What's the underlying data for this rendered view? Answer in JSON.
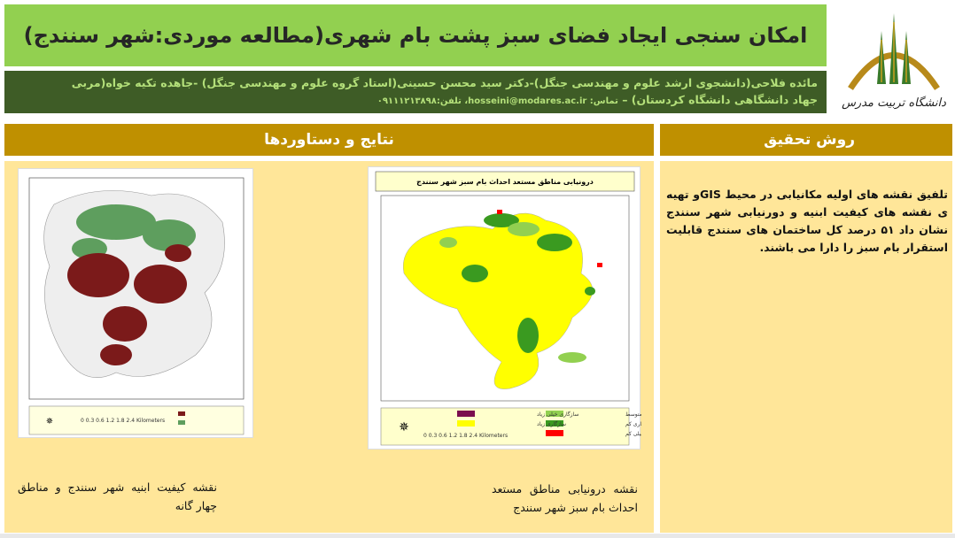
{
  "title": "امکان سنجی ایجاد فضای سبز پشت بام شهری(مطالعه موردی:شهر سنندج)",
  "logo_text": "دانشگاه تربیت مدرس",
  "authors": {
    "line1": "مائده فلاحی(دانشجوی ارشد علوم و مهندسی جنگل)-دکتر سید محسن حسینی(استاد گروه علوم و مهندسی جنگل) -جاهده تکیه خواه(مربی",
    "line2": "جهاد دانشگاهی دانشگاه کردستان) –",
    "contact": "تماس: hosseini@modares.ac.ir، تلفن:۰۹۱۱۱۲۱۳۸۹۸"
  },
  "sections": {
    "results": "نتایج و دستاوردها",
    "method": "روش تحقیق"
  },
  "method_text": "تلفیق نقشه های اولیه مکانیابی در محیط  GISو تهیه ی نقشه های کیفیت ابنیه و دورنیابی شهر سنندج نشان داد ۵۱ درصد کل ساختمان های سنندج قابلیت استقرار بام سبز را دارا می باشند.",
  "map2": {
    "title": "درونیابی مناطق مستعد احداث بام سبز شهر سنندج",
    "legend": [
      {
        "label": "سازگاری متوسط",
        "color": "#92d050"
      },
      {
        "label": "سازگاری کم",
        "color": "#3a9a20"
      },
      {
        "label": "سازگاری خیلی کم",
        "color": "#ff0000"
      },
      {
        "label": "سازگاری خیلی زیاد",
        "color": "#7b0e4e"
      },
      {
        "label": "سازگاری زیاد",
        "color": "#ffff00"
      }
    ],
    "scale": "0 0.3 0.6 1.2 1.8 2.4 Kilometers"
  },
  "map1": {
    "scale": "0 0.3 0.6 1.2 1.8 2.4 Kilometers",
    "colors": [
      "#7b1a1a",
      "#5a9a5a"
    ]
  },
  "captions": {
    "map1": "نقشه کیفیت ابنیه شهر سنندج و مناطق چهار گانه",
    "map2": "نقشه درونیابی مناطق مستعد احداث بام سبز شهر سنندج"
  }
}
